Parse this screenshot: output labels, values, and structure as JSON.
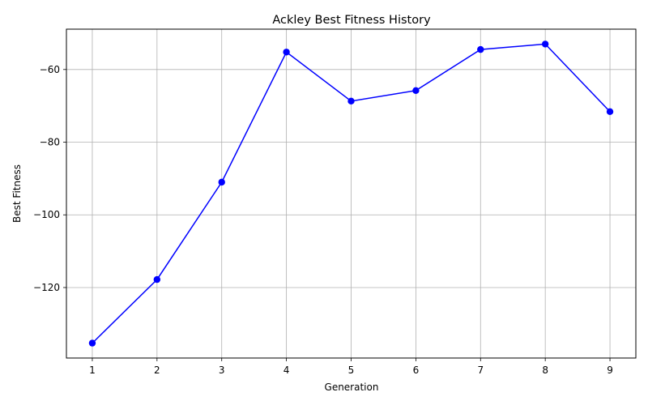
{
  "chart_data": {
    "type": "line",
    "title": "Ackley Best Fitness History",
    "xlabel": "Generation",
    "ylabel": "Best Fitness",
    "x": [
      1,
      2,
      3,
      4,
      5,
      6,
      7,
      8,
      9
    ],
    "series": [
      {
        "values": [
          -135.3,
          -117.8,
          -91.0,
          -55.2,
          -68.7,
          -65.8,
          -54.5,
          -53.0,
          -71.6
        ],
        "color": "#0000ff",
        "marker": "circle"
      }
    ],
    "xticks": [
      1,
      2,
      3,
      4,
      5,
      6,
      7,
      8,
      9
    ],
    "yticks": [
      -120,
      -100,
      -80,
      -60
    ],
    "xlim": [
      0.6,
      9.4
    ],
    "ylim": [
      -139.4,
      -48.9
    ],
    "grid": true,
    "legend": "none"
  }
}
